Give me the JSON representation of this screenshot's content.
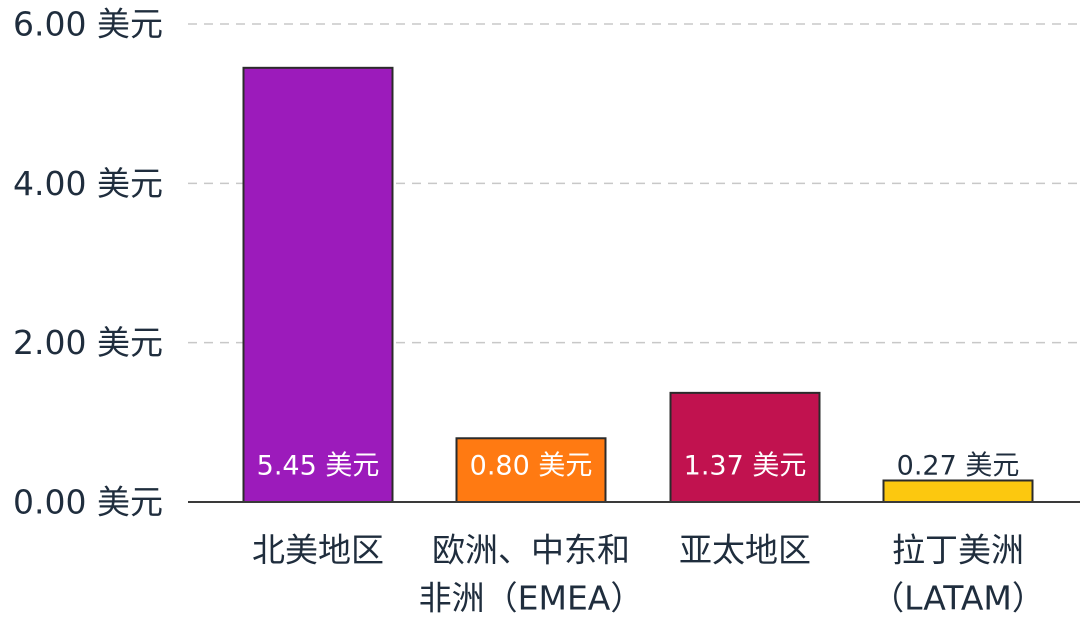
{
  "chart_data": {
    "type": "bar",
    "categories": [
      [
        "北美地区"
      ],
      [
        "欧洲、中东和",
        "非洲（EMEA）"
      ],
      [
        "亚太地区"
      ],
      [
        "拉丁美洲",
        "（LATAM）"
      ]
    ],
    "values": [
      5.45,
      0.8,
      1.37,
      0.27
    ],
    "data_labels": [
      "5.45 美元",
      "0.80 美元",
      "1.37 美元",
      "0.27 美元"
    ],
    "bar_colors": [
      "#9c1bbb",
      "#ff7a12",
      "#c1124f",
      "#fcc80f"
    ],
    "data_label_colors": [
      "#ffffff",
      "#ffffff",
      "#ffffff",
      "#1f2d3d"
    ],
    "ylim": [
      0,
      6
    ],
    "yticks": [
      0,
      2,
      4,
      6
    ],
    "ytick_labels": [
      "0.00 美元",
      "2.00 美元",
      "4.00 美元",
      "6.00 美元"
    ],
    "grid": true,
    "title": "",
    "xlabel": "",
    "ylabel": ""
  }
}
